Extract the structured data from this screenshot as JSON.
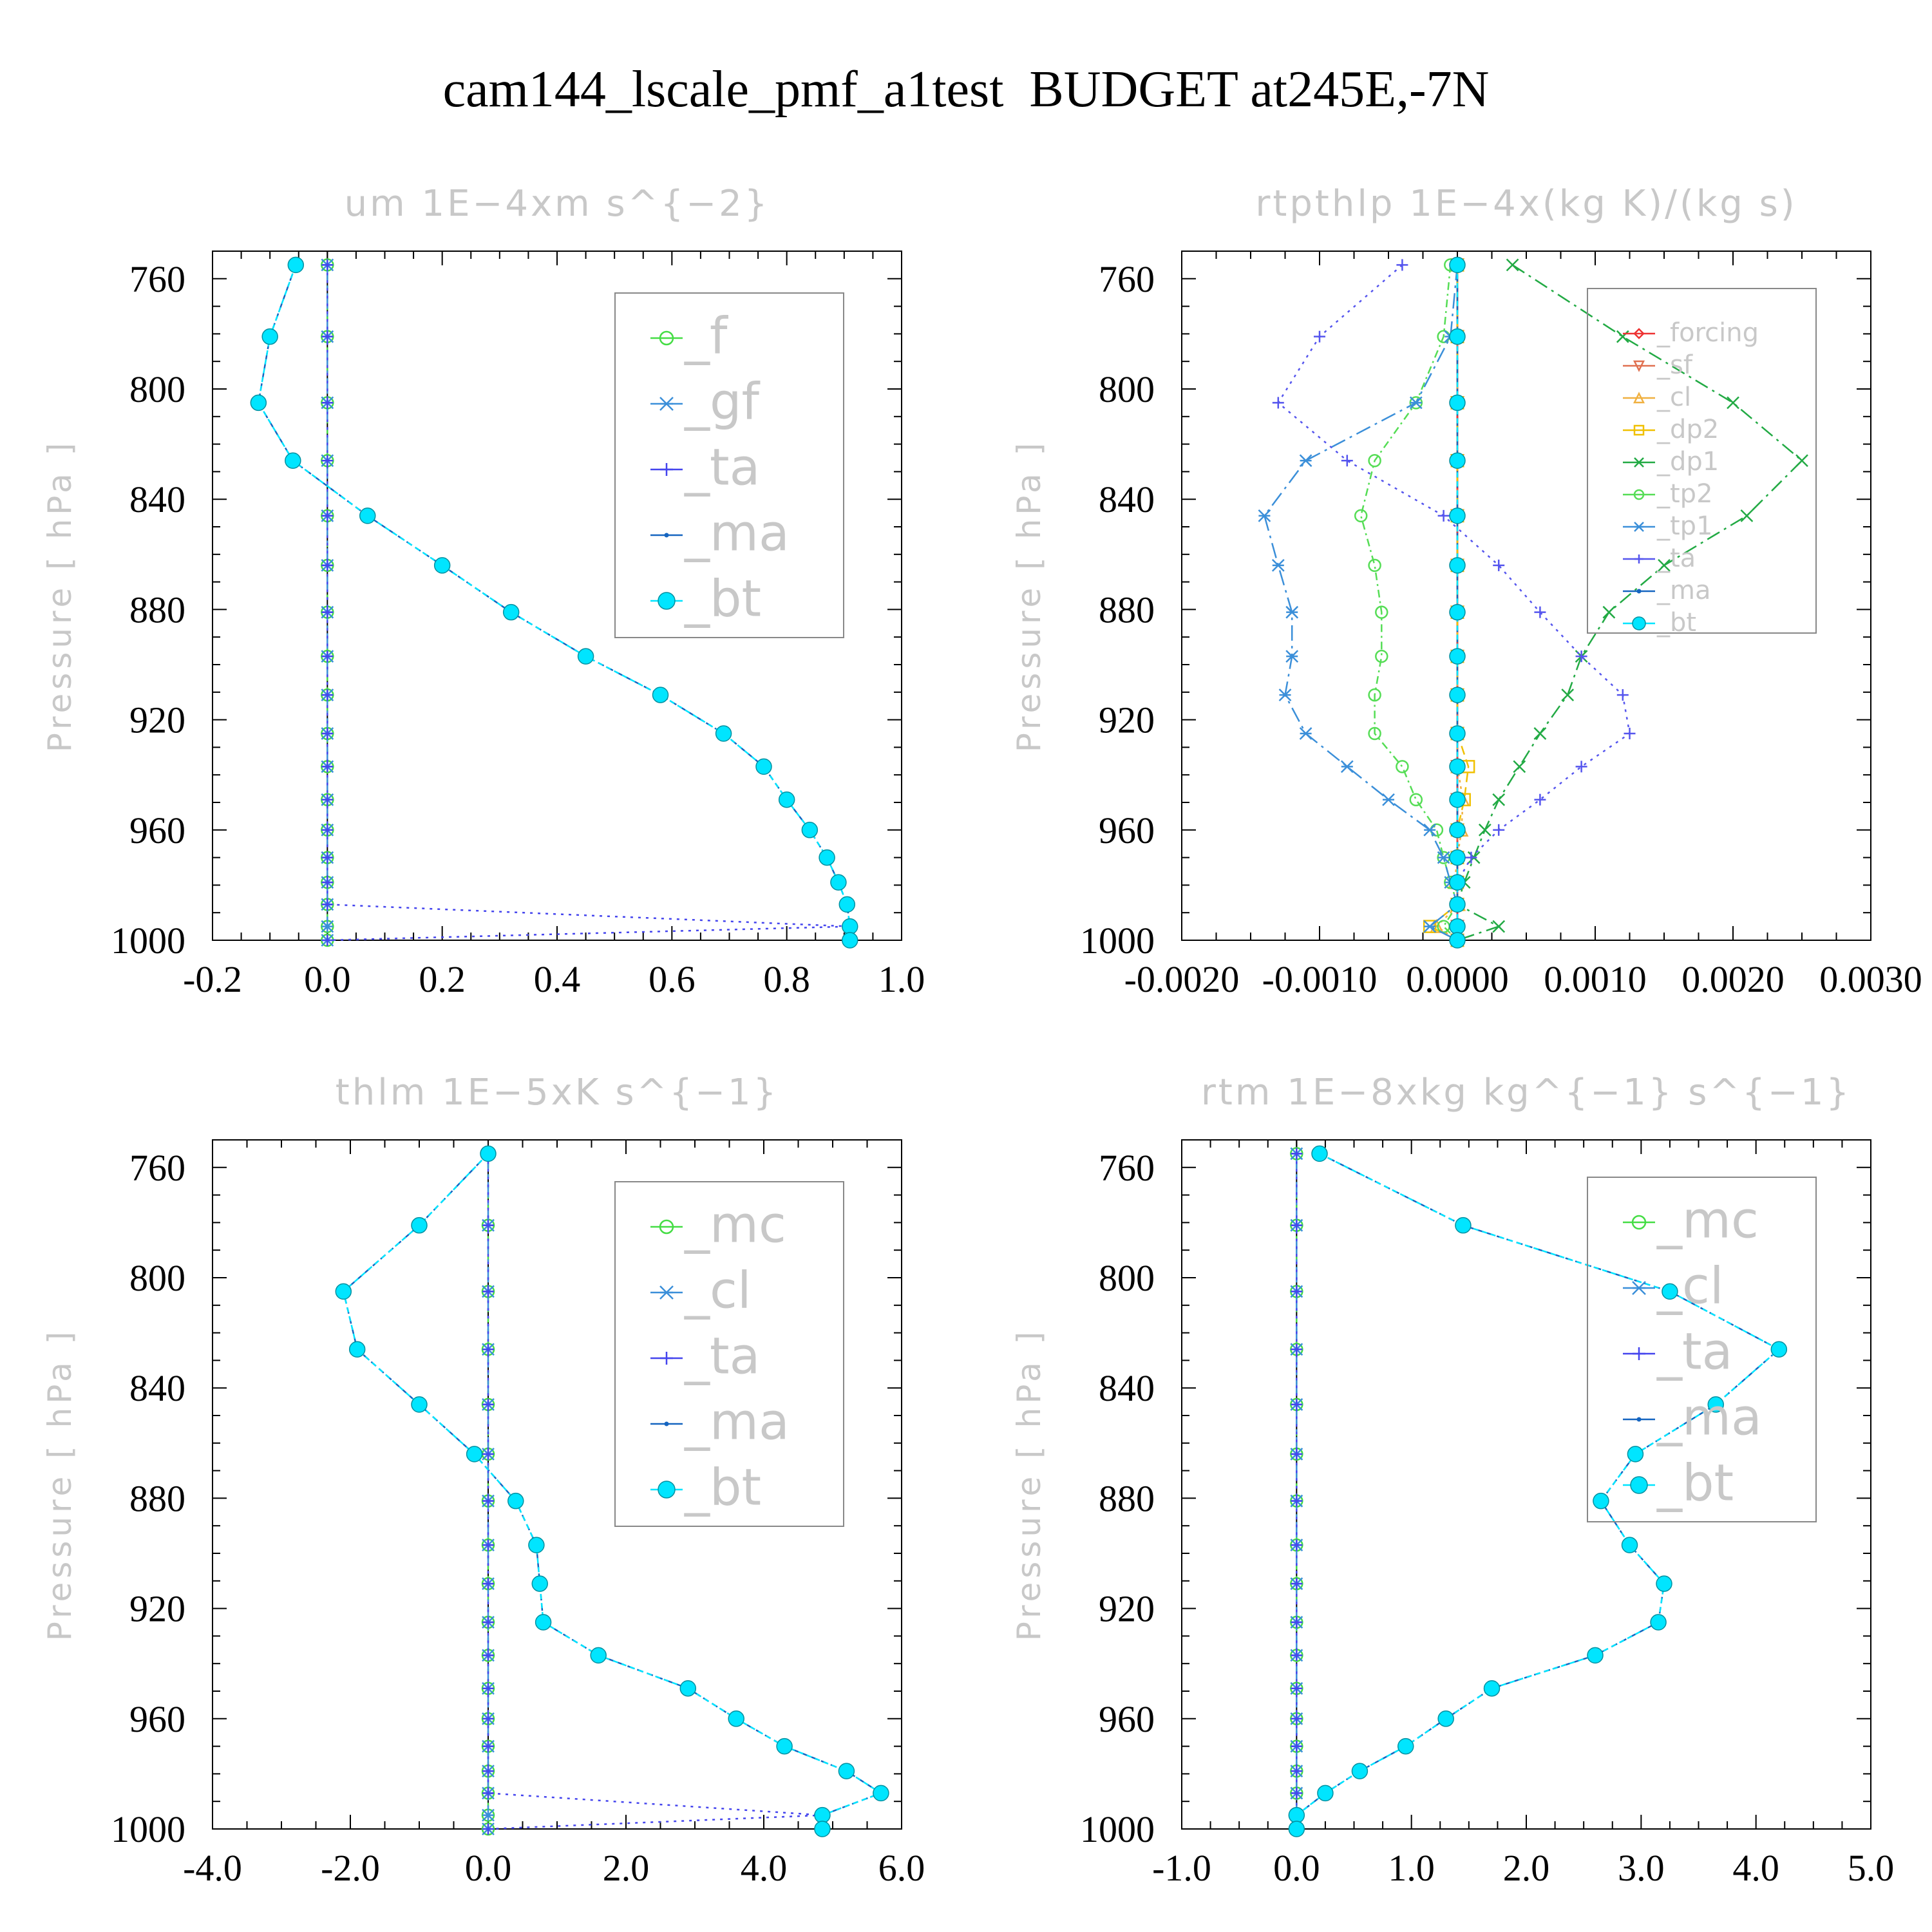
{
  "figure_title": "cam144_lscale_pmf_a1test  BUDGET at245E,-7N",
  "ylabel": "Pressure  [ hPa ]",
  "chart_data": [
    {
      "type": "line",
      "title": "um   1E−4xm  s^{−2}",
      "ylabel": "Pressure  [ hPa ]",
      "xlim": [
        -0.2,
        1.0
      ],
      "ylim": [
        1000,
        750
      ],
      "xticks": [
        "-0.2",
        "0.0",
        "0.2",
        "0.4",
        "0.6",
        "0.8",
        "1.0"
      ],
      "xtick_values": [
        -0.2,
        0.0,
        0.2,
        0.4,
        0.6,
        0.8,
        1.0
      ],
      "yticks": [
        "760",
        "800",
        "840",
        "880",
        "920",
        "960",
        "1000"
      ],
      "ytick_values": [
        760,
        800,
        840,
        880,
        920,
        960,
        1000
      ],
      "legend_position": "top-right",
      "levels": [
        755,
        781,
        805,
        826,
        846,
        864,
        881,
        897,
        911,
        925,
        937,
        949,
        960,
        970,
        979,
        987,
        995,
        1000
      ],
      "series": [
        {
          "name": "_f",
          "color": "#44dd44",
          "marker": "circle",
          "dash": "6,10",
          "values": [
            0,
            0,
            0,
            0,
            0,
            0,
            0,
            0,
            0,
            0,
            0,
            0,
            0,
            0,
            0,
            0,
            0,
            0
          ]
        },
        {
          "name": "_gf",
          "color": "#3b8fd9",
          "marker": "asterisk",
          "dash": "24,8,4,8",
          "values": [
            0,
            0,
            0,
            0,
            0,
            0,
            0,
            0,
            0,
            0,
            0,
            0,
            0,
            0,
            0,
            0,
            0,
            0
          ]
        },
        {
          "name": "_ta",
          "color": "#4444ee",
          "marker": "plus",
          "dash": "4,8",
          "values": [
            0,
            0,
            0,
            0,
            0,
            0,
            0,
            0,
            0,
            0,
            0,
            0,
            0,
            0,
            0,
            0,
            0.91,
            0
          ]
        },
        {
          "name": "_ma",
          "color": "#1565c0",
          "marker": "dot",
          "dash": "10,6",
          "values": [
            -0.055,
            -0.1,
            -0.12,
            -0.06,
            0.07,
            0.2,
            0.32,
            0.45,
            0.58,
            0.69,
            0.76,
            0.8,
            0.84,
            0.87,
            0.89,
            0.905,
            0.91,
            0.91
          ]
        },
        {
          "name": "_bt",
          "color": "#00e5ff",
          "marker": "filled",
          "dash": "8,6",
          "values": [
            -0.055,
            -0.1,
            -0.12,
            -0.06,
            0.07,
            0.2,
            0.32,
            0.45,
            0.58,
            0.69,
            0.76,
            0.8,
            0.84,
            0.87,
            0.89,
            0.905,
            0.91,
            0.91
          ]
        }
      ]
    },
    {
      "type": "line",
      "title": "rtpthlp   1E−4x(kg  K)/(kg  s)",
      "ylabel": "Pressure  [ hPa ]",
      "xlim": [
        -0.002,
        0.003
      ],
      "ylim": [
        1000,
        750
      ],
      "xticks": [
        "-0.0020",
        "-0.0010",
        "0.0000",
        "0.0010",
        "0.0020",
        "0.0030"
      ],
      "xtick_values": [
        -0.002,
        -0.001,
        0.0,
        0.001,
        0.002,
        0.003
      ],
      "yticks": [
        "760",
        "800",
        "840",
        "880",
        "920",
        "960",
        "1000"
      ],
      "ytick_values": [
        760,
        800,
        840,
        880,
        920,
        960,
        1000
      ],
      "legend_position": "top-right",
      "levels": [
        755,
        781,
        805,
        826,
        846,
        864,
        881,
        897,
        911,
        925,
        937,
        949,
        960,
        970,
        979,
        987,
        995,
        1000
      ],
      "series": [
        {
          "name": "_forcing",
          "color": "#ee3333",
          "marker": "diamond",
          "dash": "none",
          "values": [
            0,
            0,
            0,
            0,
            0,
            0,
            0,
            0,
            0,
            0,
            0,
            0,
            0,
            0,
            0,
            0,
            0,
            0
          ]
        },
        {
          "name": "_sf",
          "color": "#e07050",
          "marker": "triangle-down",
          "dash": "6,6",
          "values": [
            0,
            0,
            0,
            0,
            0,
            0,
            0,
            0,
            0,
            0,
            0,
            0,
            0,
            0,
            0,
            0,
            0,
            0
          ]
        },
        {
          "name": "_cl",
          "color": "#f0b040",
          "marker": "triangle",
          "dash": "4,6",
          "values": [
            0,
            0,
            0,
            0,
            0,
            0,
            0,
            0,
            0,
            0,
            0,
            4e-05,
            3e-05,
            0,
            -2e-05,
            1e-05,
            -0.00015,
            0
          ]
        },
        {
          "name": "_dp2",
          "color": "#f0c000",
          "marker": "square",
          "dash": "14,8",
          "values": [
            0,
            0,
            0,
            0,
            0,
            0,
            0,
            0,
            0,
            0,
            8e-05,
            5e-05,
            0,
            0,
            0,
            0,
            -0.0002,
            0
          ]
        },
        {
          "name": "_dp1",
          "color": "#22aa44",
          "marker": "cross",
          "dash": "22,8,4,8",
          "values": [
            0.0004,
            0.0012,
            0.002,
            0.0025,
            0.0021,
            0.0015,
            0.0011,
            0.0009,
            0.0008,
            0.0006,
            0.00045,
            0.0003,
            0.0002,
            0.00012,
            5e-05,
            0,
            0.0003,
            0
          ]
        },
        {
          "name": "_tp2",
          "color": "#55dd55",
          "marker": "circle",
          "dash": "12,6,3,6",
          "values": [
            -5e-05,
            -0.0001,
            -0.0003,
            -0.0006,
            -0.0007,
            -0.0006,
            -0.00055,
            -0.00055,
            -0.0006,
            -0.0006,
            -0.0004,
            -0.0003,
            -0.00015,
            -0.0001,
            -5e-05,
            0,
            -0.0001,
            0
          ]
        },
        {
          "name": "_tp1",
          "color": "#3b8fd9",
          "marker": "asterisk",
          "dash": "24,8,4,8",
          "values": [
            0,
            -5e-05,
            -0.0003,
            -0.0011,
            -0.0014,
            -0.0013,
            -0.0012,
            -0.0012,
            -0.00125,
            -0.0011,
            -0.0008,
            -0.0005,
            -0.0002,
            -0.0001,
            -5e-05,
            0,
            -0.0002,
            0
          ]
        },
        {
          "name": "_ta",
          "color": "#5555ee",
          "marker": "plus",
          "dash": "4,8",
          "values": [
            -0.0004,
            -0.001,
            -0.0013,
            -0.0008,
            -0.0001,
            0.0003,
            0.0006,
            0.0009,
            0.0012,
            0.00125,
            0.0009,
            0.0006,
            0.0003,
            0.0001,
            0,
            0,
            0,
            0
          ]
        },
        {
          "name": "_ma",
          "color": "#1565c0",
          "marker": "dot",
          "dash": "10,6",
          "values": [
            0,
            0,
            0,
            0,
            0,
            0,
            0,
            0,
            0,
            0,
            0,
            0,
            0,
            0,
            0,
            0,
            0,
            0
          ]
        },
        {
          "name": "_bt",
          "color": "#00e5ff",
          "marker": "filled",
          "dash": "8,6",
          "values": [
            0,
            0,
            0,
            0,
            0,
            0,
            0,
            0,
            0,
            0,
            0,
            0,
            0,
            0,
            0,
            0,
            0,
            0
          ]
        }
      ]
    },
    {
      "type": "line",
      "title": "thlm   1E−5xK  s^{−1}",
      "ylabel": "Pressure  [ hPa ]",
      "xlim": [
        -4.0,
        6.0
      ],
      "ylim": [
        1000,
        750
      ],
      "xticks": [
        "-4.0",
        "-2.0",
        "0.0",
        "2.0",
        "4.0",
        "6.0"
      ],
      "xtick_values": [
        -4.0,
        -2.0,
        0.0,
        2.0,
        4.0,
        6.0
      ],
      "yticks": [
        "760",
        "800",
        "840",
        "880",
        "920",
        "960",
        "1000"
      ],
      "ytick_values": [
        760,
        800,
        840,
        880,
        920,
        960,
        1000
      ],
      "legend_position": "top-right",
      "levels": [
        755,
        781,
        805,
        826,
        846,
        864,
        881,
        897,
        911,
        925,
        937,
        949,
        960,
        970,
        979,
        987,
        995,
        1000
      ],
      "series": [
        {
          "name": "_mc",
          "color": "#44dd44",
          "marker": "circle",
          "dash": "6,10",
          "values": [
            0,
            0,
            0,
            0,
            0,
            0,
            0,
            0,
            0,
            0,
            0,
            0,
            0,
            0,
            0,
            0,
            0,
            0
          ]
        },
        {
          "name": "_cl",
          "color": "#3b8fd9",
          "marker": "asterisk",
          "dash": "24,8,4,8",
          "values": [
            0,
            0,
            0,
            0,
            0,
            0,
            0,
            0,
            0,
            0,
            0,
            0,
            0,
            0,
            0,
            0,
            0,
            0
          ]
        },
        {
          "name": "_ta",
          "color": "#4444ee",
          "marker": "plus",
          "dash": "4,8",
          "values": [
            0,
            0,
            0,
            0,
            0,
            0,
            0,
            0,
            0,
            0,
            0,
            0,
            0,
            0,
            0,
            0,
            4.85,
            0
          ]
        },
        {
          "name": "_ma",
          "color": "#1565c0",
          "marker": "dot",
          "dash": "10,6",
          "values": [
            0,
            -1.0,
            -2.1,
            -1.9,
            -1.0,
            -0.2,
            0.4,
            0.7,
            0.75,
            0.8,
            1.6,
            2.9,
            3.6,
            4.3,
            5.2,
            5.7,
            4.85,
            4.85
          ]
        },
        {
          "name": "_bt",
          "color": "#00e5ff",
          "marker": "filled",
          "dash": "8,6",
          "values": [
            0,
            -1.0,
            -2.1,
            -1.9,
            -1.0,
            -0.2,
            0.4,
            0.7,
            0.75,
            0.8,
            1.6,
            2.9,
            3.6,
            4.3,
            5.2,
            5.7,
            4.85,
            4.85
          ]
        }
      ]
    },
    {
      "type": "line",
      "title": "rtm   1E−8xkg  kg^{−1}  s^{−1}",
      "ylabel": "Pressure  [ hPa ]",
      "xlim": [
        -1.0,
        5.0
      ],
      "ylim": [
        1000,
        750
      ],
      "xticks": [
        "-1.0",
        "0.0",
        "1.0",
        "2.0",
        "3.0",
        "4.0",
        "5.0"
      ],
      "xtick_values": [
        -1.0,
        0.0,
        1.0,
        2.0,
        3.0,
        4.0,
        5.0
      ],
      "yticks": [
        "760",
        "800",
        "840",
        "880",
        "920",
        "960",
        "1000"
      ],
      "ytick_values": [
        760,
        800,
        840,
        880,
        920,
        960,
        1000
      ],
      "legend_position": "top-right",
      "levels": [
        755,
        781,
        805,
        826,
        846,
        864,
        881,
        897,
        911,
        925,
        937,
        949,
        960,
        970,
        979,
        987,
        995,
        1000
      ],
      "series": [
        {
          "name": "_mc",
          "color": "#44dd44",
          "marker": "circle",
          "dash": "6,10",
          "values": [
            0,
            0,
            0,
            0,
            0,
            0,
            0,
            0,
            0,
            0,
            0,
            0,
            0,
            0,
            0,
            0,
            0,
            0
          ]
        },
        {
          "name": "_cl",
          "color": "#3b8fd9",
          "marker": "asterisk",
          "dash": "24,8,4,8",
          "values": [
            0,
            0,
            0,
            0,
            0,
            0,
            0,
            0,
            0,
            0,
            0,
            0,
            0,
            0,
            0,
            0,
            0,
            0
          ]
        },
        {
          "name": "_ta",
          "color": "#4444ee",
          "marker": "plus",
          "dash": "4,8",
          "values": [
            0,
            0,
            0,
            0,
            0,
            0,
            0,
            0,
            0,
            0,
            0,
            0,
            0,
            0,
            0,
            0,
            0,
            0
          ]
        },
        {
          "name": "_ma",
          "color": "#1565c0",
          "marker": "dot",
          "dash": "10,6",
          "values": [
            0.2,
            1.45,
            3.25,
            4.2,
            3.65,
            2.95,
            2.65,
            2.9,
            3.2,
            3.15,
            2.6,
            1.7,
            1.3,
            0.95,
            0.55,
            0.25,
            0,
            0
          ]
        },
        {
          "name": "_bt",
          "color": "#00e5ff",
          "marker": "filled",
          "dash": "8,6",
          "values": [
            0.2,
            1.45,
            3.25,
            4.2,
            3.65,
            2.95,
            2.65,
            2.9,
            3.2,
            3.15,
            2.6,
            1.7,
            1.3,
            0.95,
            0.55,
            0.25,
            0,
            0
          ]
        }
      ]
    }
  ]
}
